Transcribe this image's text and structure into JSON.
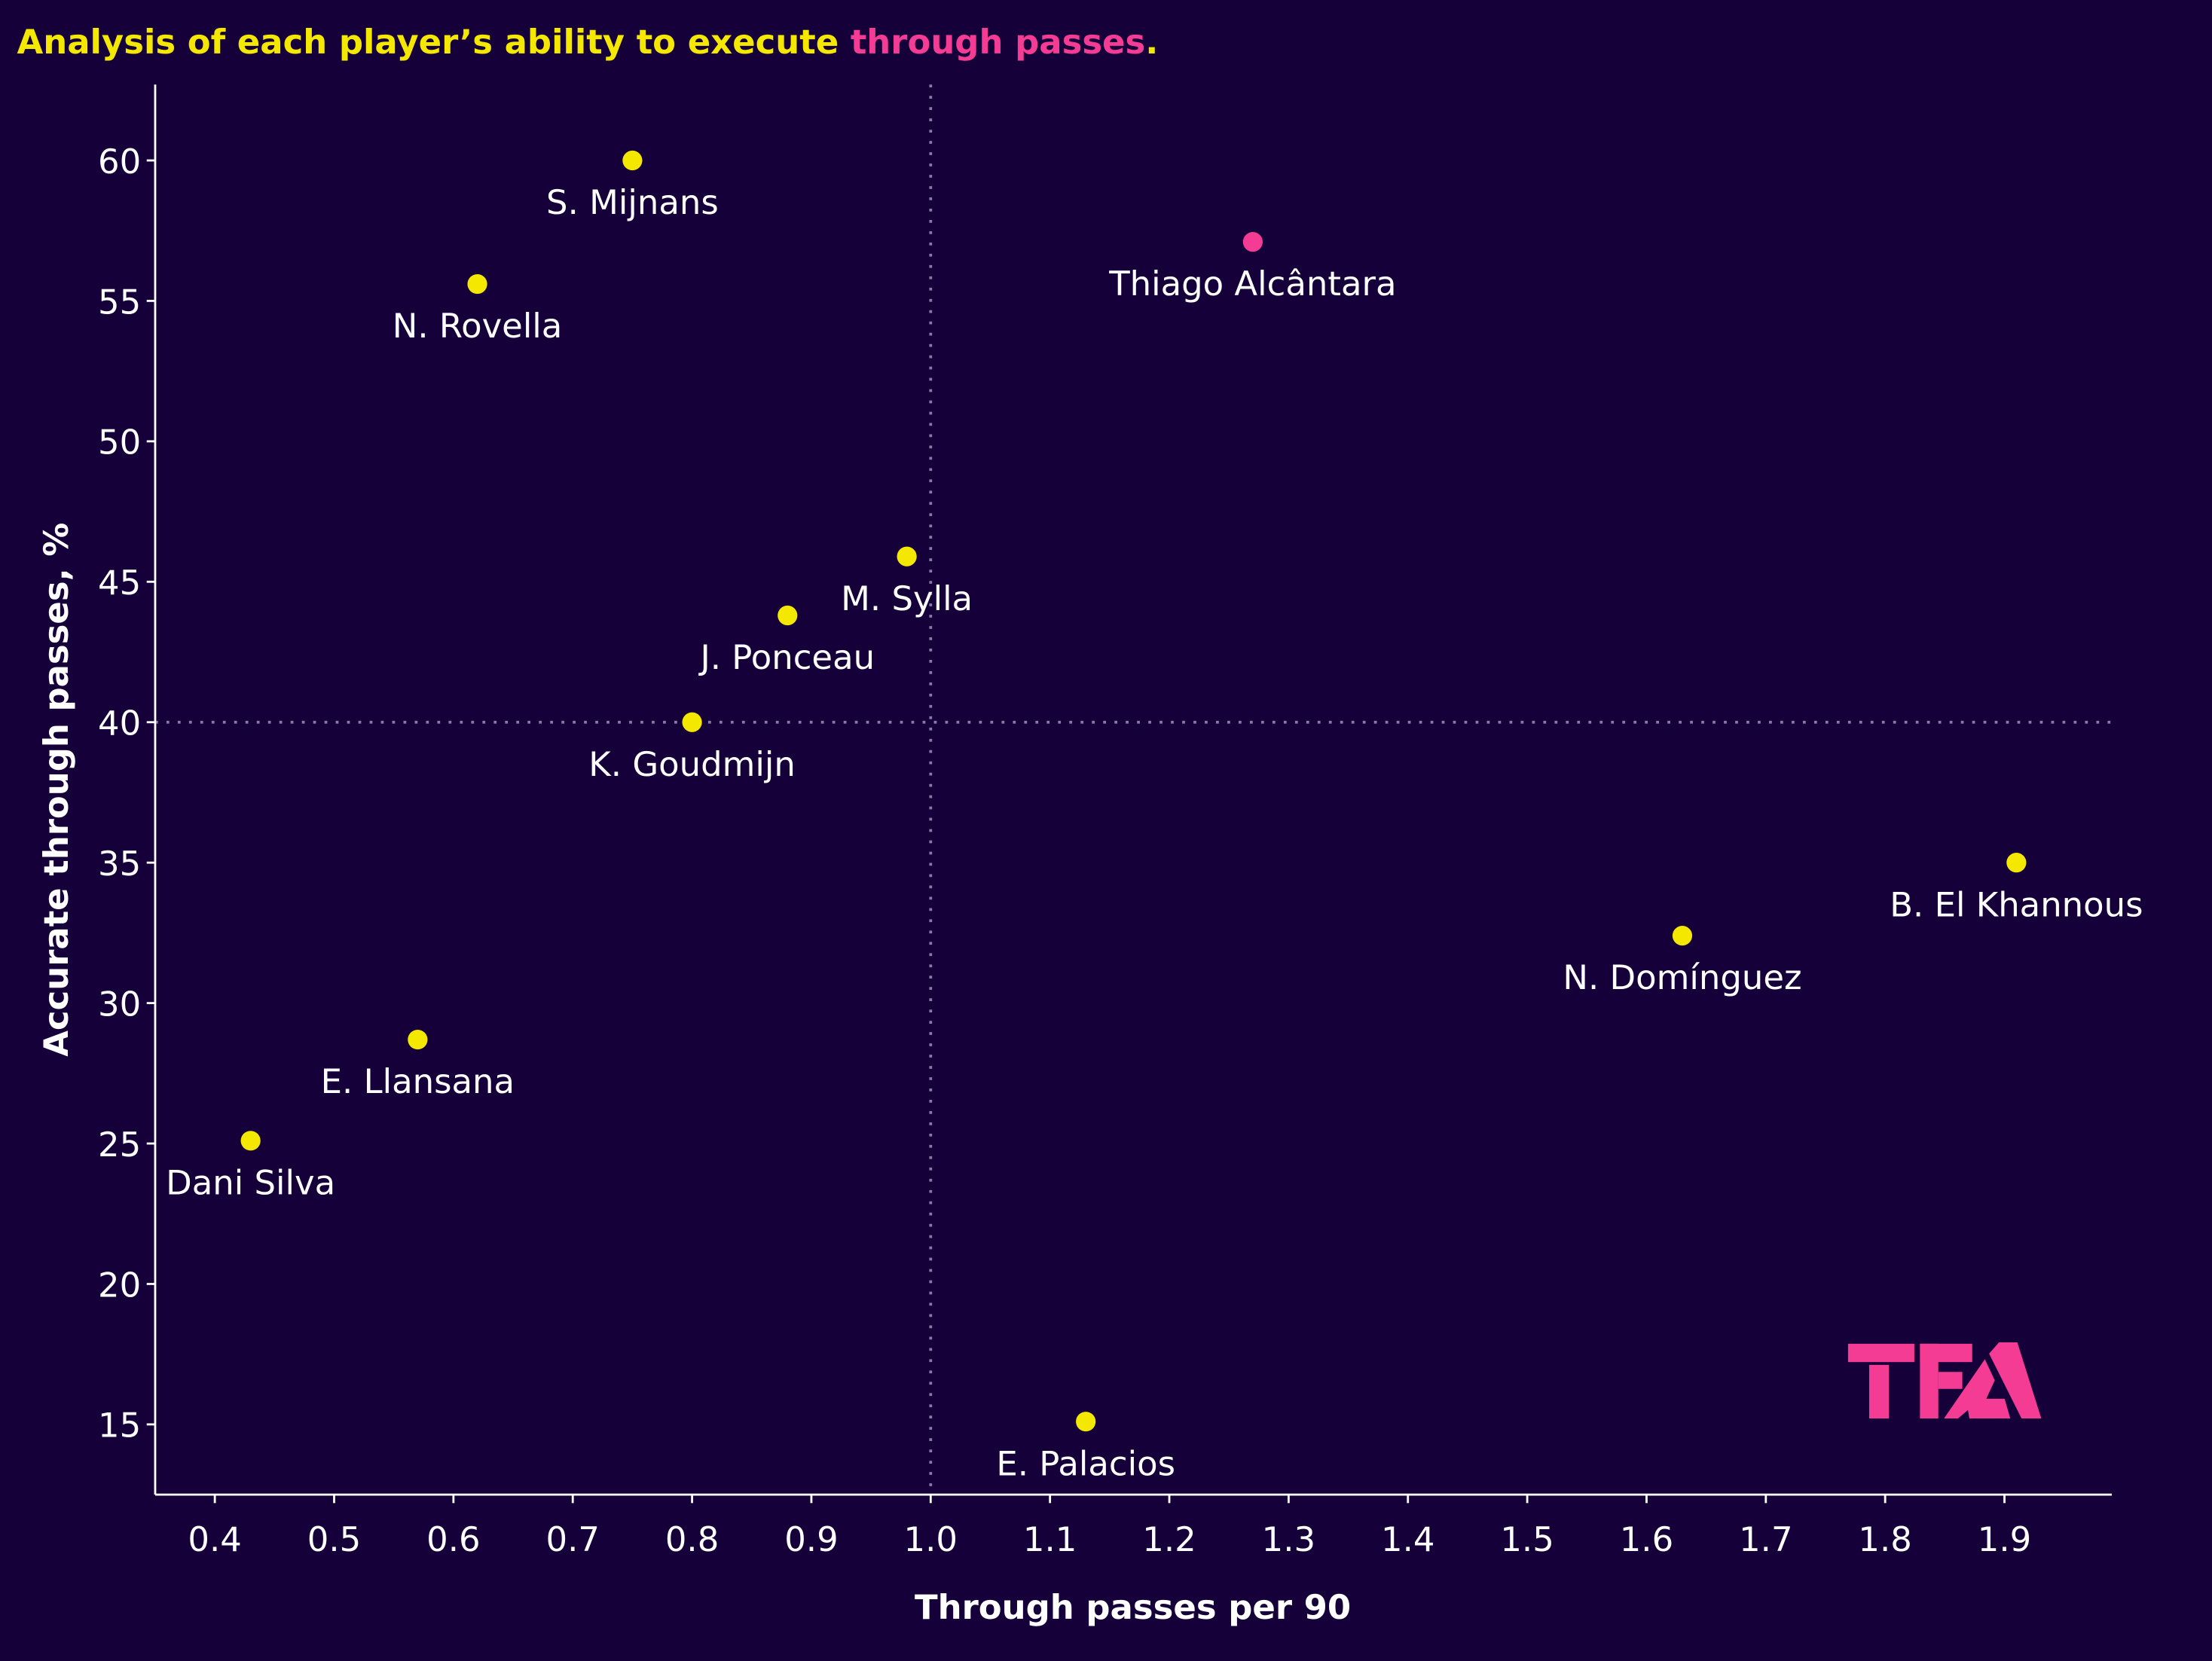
{
  "colors": {
    "background": "#16003a",
    "highlight": "#f53c95",
    "default_point": "#f5e800",
    "title": "#f5e800",
    "axis": "#ffffff",
    "reference_line": "#8a7aa8"
  },
  "chart_data": {
    "type": "scatter",
    "title_parts": [
      "Analysis of each player’s ability to execute ",
      "through passes",
      "."
    ],
    "xlabel": "Through passes per 90",
    "ylabel": "Accurate through passes, %",
    "xlim": [
      0.35,
      1.99
    ],
    "ylim": [
      12.5,
      62.7
    ],
    "xticks": [
      "0.4",
      "0.5",
      "0.6",
      "0.7",
      "0.8",
      "0.9",
      "1.0",
      "1.1",
      "1.2",
      "1.3",
      "1.4",
      "1.5",
      "1.6",
      "1.7",
      "1.8",
      "1.9"
    ],
    "yticks": [
      "15",
      "20",
      "25",
      "30",
      "35",
      "40",
      "45",
      "50",
      "55",
      "60"
    ],
    "grid": false,
    "reference_lines": {
      "x": 1.0,
      "y": 40
    },
    "points": [
      {
        "name": "S. Mijnans",
        "x": 0.75,
        "y": 60.0,
        "highlight": false
      },
      {
        "name": "N. Rovella",
        "x": 0.62,
        "y": 55.6,
        "highlight": false
      },
      {
        "name": "Thiago Alcântara",
        "x": 1.27,
        "y": 57.1,
        "highlight": true
      },
      {
        "name": "M. Sylla",
        "x": 0.98,
        "y": 45.9,
        "highlight": false
      },
      {
        "name": "J. Ponceau",
        "x": 0.88,
        "y": 43.8,
        "highlight": false
      },
      {
        "name": "K. Goudmijn",
        "x": 0.8,
        "y": 40.0,
        "highlight": false
      },
      {
        "name": "B. El Khannous",
        "x": 1.91,
        "y": 35.0,
        "highlight": false
      },
      {
        "name": "N. Domínguez",
        "x": 1.63,
        "y": 32.4,
        "highlight": false
      },
      {
        "name": "E. Llansana",
        "x": 0.57,
        "y": 28.7,
        "highlight": false
      },
      {
        "name": "Dani Silva",
        "x": 0.43,
        "y": 25.1,
        "highlight": false
      },
      {
        "name": "E. Palacios",
        "x": 1.13,
        "y": 15.1,
        "highlight": false
      }
    ]
  },
  "logo": {
    "text": "TFA"
  }
}
